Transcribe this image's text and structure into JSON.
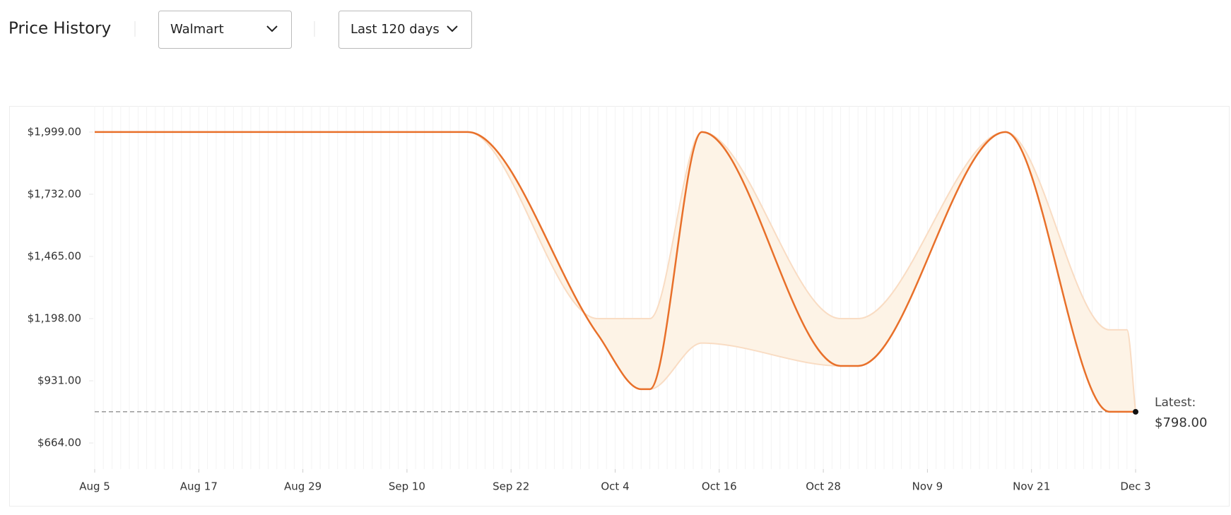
{
  "header": {
    "title": "Price History",
    "store": "Walmart",
    "range": "Last 120 days"
  },
  "chart_data": {
    "type": "line",
    "x": [
      0,
      43,
      58,
      63,
      64,
      70,
      86,
      88,
      105,
      117,
      119,
      120
    ],
    "values": [
      1999,
      1999,
      1130,
      895,
      895,
      1999,
      995,
      995,
      1999,
      798,
      798,
      798
    ],
    "color": "#e8702a",
    "range": {
      "high": [
        1999,
        1999,
        1198,
        1198,
        1198,
        1999,
        1198,
        1198,
        1999,
        1150,
        1150,
        798
      ],
      "low": [
        1999,
        1999,
        1130,
        895,
        895,
        1093,
        995,
        995,
        1999,
        798,
        798,
        798
      ],
      "fill": "#fdf3e6",
      "edge": "#f9dcc3"
    },
    "xlim": [
      0,
      120
    ],
    "xticks": [
      {
        "value": 0,
        "label": "Aug 5"
      },
      {
        "value": 12,
        "label": "Aug 17"
      },
      {
        "value": 24,
        "label": "Aug 29"
      },
      {
        "value": 36,
        "label": "Sep 10"
      },
      {
        "value": 48,
        "label": "Sep 22"
      },
      {
        "value": 60,
        "label": "Oct 4"
      },
      {
        "value": 72,
        "label": "Oct 16"
      },
      {
        "value": 84,
        "label": "Oct 28"
      },
      {
        "value": 96,
        "label": "Nov 9"
      },
      {
        "value": 108,
        "label": "Nov 21"
      },
      {
        "value": 120,
        "label": "Dec 3"
      }
    ],
    "ylim": [
      552,
      2111
    ],
    "yticks": [
      {
        "value": 664,
        "label": "$664.00"
      },
      {
        "value": 931,
        "label": "$931.00"
      },
      {
        "value": 1198,
        "label": "$1,198.00"
      },
      {
        "value": 1465,
        "label": "$1,465.00"
      },
      {
        "value": 1732,
        "label": "$1,732.00"
      },
      {
        "value": 1999,
        "label": "$1,999.00"
      }
    ],
    "latest": {
      "label": "Latest:",
      "value": 798,
      "value_label": "$798.00"
    },
    "grid": true
  }
}
